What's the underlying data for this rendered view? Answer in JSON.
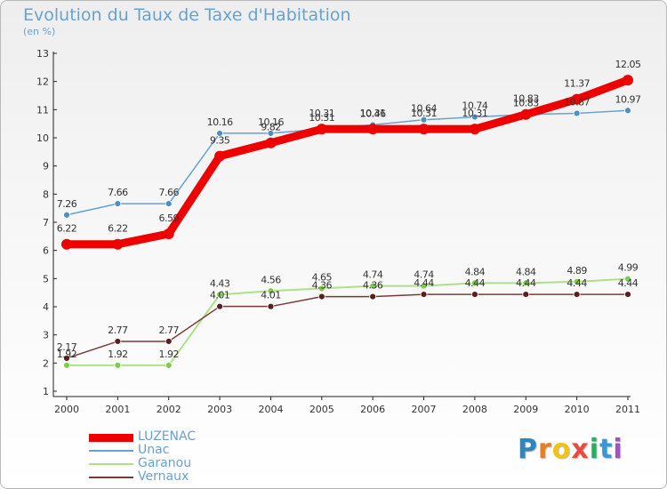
{
  "title": "Evolution du Taux de Taxe d'Habitation",
  "subtitle": "(en %)",
  "logo_letters": [
    "P",
    "r",
    "o",
    "x",
    "i",
    "t",
    "i"
  ],
  "logo_colors": [
    "#2e86c1",
    "#e67e22",
    "#f1c40f",
    "#e74c3c",
    "#27ae60",
    "#3498db",
    "#9b59b6"
  ],
  "chart_data": {
    "type": "line",
    "title": "Evolution du Taux de Taxe d'Habitation",
    "ylabel": "(en %)",
    "xlabel": "",
    "categories": [
      "2000",
      "2001",
      "2002",
      "2003",
      "2004",
      "2005",
      "2006",
      "2007",
      "2008",
      "2009",
      "2010",
      "2011"
    ],
    "ylim": [
      1,
      13
    ],
    "yticks": [
      1,
      2,
      3,
      4,
      5,
      6,
      7,
      8,
      9,
      10,
      11,
      12,
      13
    ],
    "legend_position": "bottom-left",
    "series": [
      {
        "name": "Unac",
        "color": "#6aa1d3",
        "marker": "#4a90c8",
        "values": [
          7.26,
          7.66,
          7.66,
          10.16,
          10.16,
          10.31,
          10.46,
          10.64,
          10.74,
          10.83,
          10.87,
          10.97
        ],
        "labels": [
          "7.26",
          "7.66",
          "7.66",
          "10.16",
          "10.16",
          "10.31",
          "10.46",
          "10.64",
          "10.74",
          "10.83",
          "10.87",
          "10.97"
        ]
      },
      {
        "name": "Garanou",
        "color": "#aee08a",
        "marker": "#7ccd4a",
        "values": [
          1.92,
          1.92,
          1.92,
          4.43,
          4.56,
          4.65,
          4.74,
          4.74,
          4.84,
          4.84,
          4.89,
          4.99
        ],
        "labels": [
          "1.92",
          "1.92",
          "1.92",
          "4.43",
          "4.56",
          "4.65",
          "4.74",
          "4.74",
          "4.84",
          "4.84",
          "4.89",
          "4.99"
        ]
      },
      {
        "name": "Vernaux",
        "color": "#7a3a3a",
        "marker": "#5a1e1e",
        "values": [
          2.17,
          2.77,
          2.77,
          4.01,
          4.01,
          4.36,
          4.36,
          4.44,
          4.44,
          4.44,
          4.44,
          4.44
        ],
        "labels": [
          "2.17",
          "2.77",
          "2.77",
          "4.01",
          "4.01",
          "4.36",
          "4.36",
          "4.44",
          "4.44",
          "4.44",
          "4.44",
          "4.44"
        ]
      },
      {
        "name": "LUZENAC",
        "color": "#ee0000",
        "marker": "#ee0000",
        "values": [
          6.22,
          6.22,
          6.59,
          9.35,
          9.82,
          10.31,
          10.31,
          10.31,
          10.31,
          10.83,
          11.37,
          12.05
        ],
        "labels": [
          "6.22",
          "6.22",
          "6.59",
          "9.35",
          "9.82",
          "10.31",
          "10.31",
          "10.31",
          "10.31",
          "10.83",
          "11.37",
          "12.05"
        ]
      }
    ],
    "legend_order": [
      "LUZENAC",
      "Unac",
      "Garanou",
      "Vernaux"
    ]
  }
}
